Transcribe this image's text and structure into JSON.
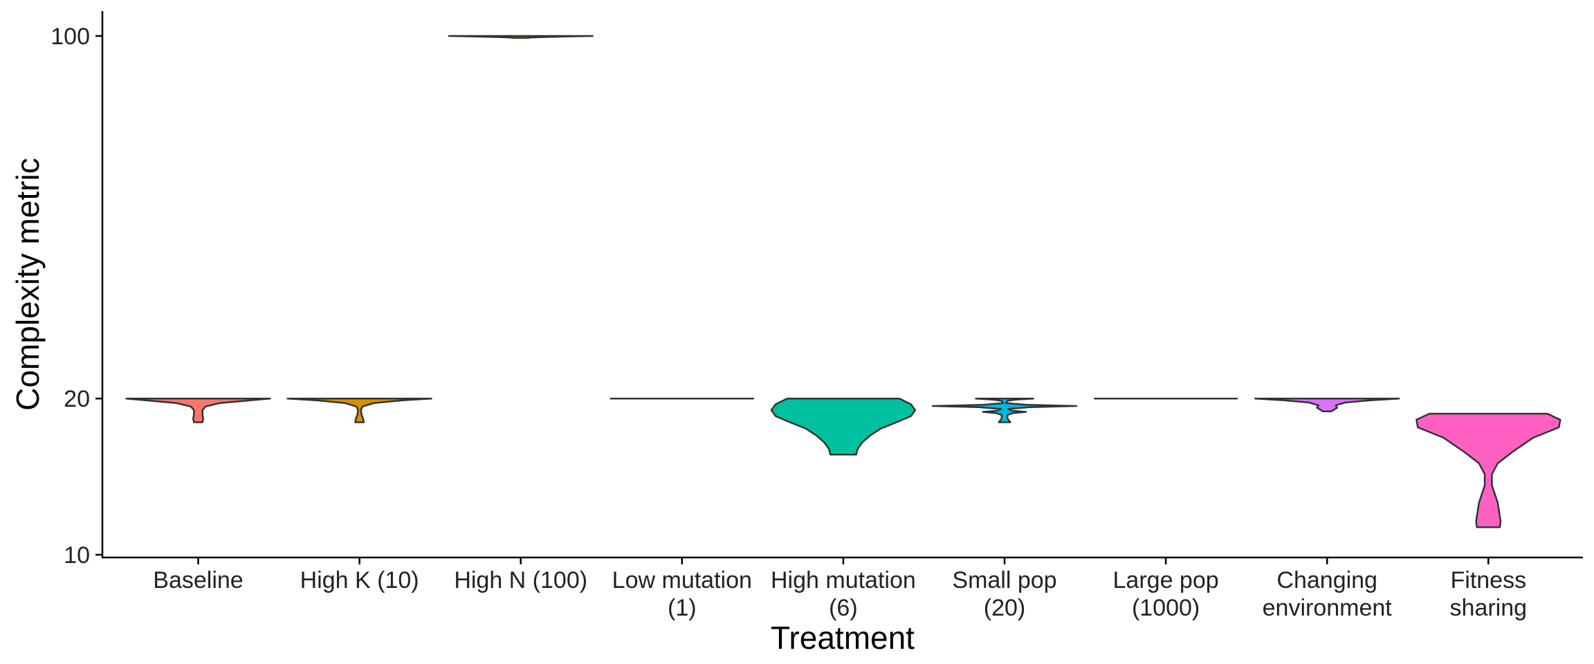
{
  "chart_data": {
    "type": "violin",
    "xlabel": "Treatment",
    "ylabel": "Complexity metric",
    "y_scale": "log",
    "ylim": [
      10,
      120
    ],
    "yticks": [
      "10",
      "20",
      "100"
    ],
    "grid": false,
    "legend": "none",
    "categories": [
      [
        "Baseline"
      ],
      [
        "High K (10)"
      ],
      [
        "High N (100)"
      ],
      [
        "Low mutation",
        "(1)"
      ],
      [
        "High mutation",
        "(6)"
      ],
      [
        "Small pop",
        "(20)"
      ],
      [
        "Large pop",
        "(1000)"
      ],
      [
        "Changing",
        "environment"
      ],
      [
        "Fitness",
        "sharing"
      ]
    ],
    "series": [
      {
        "color": "#F8766D",
        "profile": [
          [
            20,
            1.0
          ],
          [
            19.8,
            0.65
          ],
          [
            19.6,
            0.3
          ],
          [
            19.3,
            0.1
          ],
          [
            19.0,
            0.06
          ],
          [
            18.6,
            0.06
          ],
          [
            18.3,
            0.07
          ],
          [
            18.0,
            0.06
          ]
        ]
      },
      {
        "color": "#D39200",
        "profile": [
          [
            20,
            1.0
          ],
          [
            19.85,
            0.6
          ],
          [
            19.6,
            0.2
          ],
          [
            19.3,
            0.04
          ],
          [
            19.0,
            0.02
          ],
          [
            18.6,
            0.03
          ],
          [
            18.3,
            0.05
          ],
          [
            18.0,
            0.06
          ]
        ]
      },
      {
        "color": "#93AA00",
        "profile": [
          [
            100,
            1.0
          ],
          [
            99.8,
            0.65
          ],
          [
            99.5,
            0.3
          ],
          [
            99.3,
            0.14
          ],
          [
            99.1,
            0.1
          ]
        ]
      },
      {
        "color": "#00BA38",
        "profile": [
          [
            20,
            1.0
          ],
          [
            20,
            0.0
          ]
        ]
      },
      {
        "color": "#00C19F",
        "profile": [
          [
            20,
            0.78
          ],
          [
            19.5,
            0.94
          ],
          [
            19.0,
            1.0
          ],
          [
            18.5,
            0.94
          ],
          [
            18.0,
            0.74
          ],
          [
            17.5,
            0.52
          ],
          [
            17.0,
            0.38
          ],
          [
            16.5,
            0.27
          ],
          [
            16.0,
            0.2
          ],
          [
            15.6,
            0.18
          ]
        ]
      },
      {
        "color": "#00B9E3",
        "profile": [
          [
            20,
            0.4
          ],
          [
            19.9,
            0.15
          ],
          [
            19.8,
            0.04
          ],
          [
            19.6,
            0.02
          ],
          [
            19.45,
            0.3
          ],
          [
            19.35,
            1.0
          ],
          [
            19.25,
            0.35
          ],
          [
            19.1,
            0.05
          ],
          [
            18.95,
            0.1
          ],
          [
            18.85,
            0.3
          ],
          [
            18.75,
            0.12
          ],
          [
            18.6,
            0.04
          ],
          [
            18.3,
            0.04
          ],
          [
            18.0,
            0.08
          ]
        ]
      },
      {
        "color": "#619CFF",
        "profile": [
          [
            20,
            1.0
          ],
          [
            20,
            0.0
          ]
        ]
      },
      {
        "color": "#DB72FB",
        "profile": [
          [
            20,
            1.0
          ],
          [
            19.85,
            0.6
          ],
          [
            19.65,
            0.25
          ],
          [
            19.4,
            0.12
          ],
          [
            19.2,
            0.14
          ],
          [
            19.05,
            0.1
          ],
          [
            18.9,
            0.06
          ]
        ]
      },
      {
        "color": "#FF61C3",
        "profile": [
          [
            18.7,
            0.82
          ],
          [
            18.2,
            1.0
          ],
          [
            17.6,
            0.98
          ],
          [
            16.8,
            0.62
          ],
          [
            15.8,
            0.34
          ],
          [
            15.0,
            0.13
          ],
          [
            14.3,
            0.05
          ],
          [
            13.6,
            0.05
          ],
          [
            12.6,
            0.13
          ],
          [
            11.6,
            0.17
          ],
          [
            11.3,
            0.16
          ]
        ]
      }
    ]
  }
}
